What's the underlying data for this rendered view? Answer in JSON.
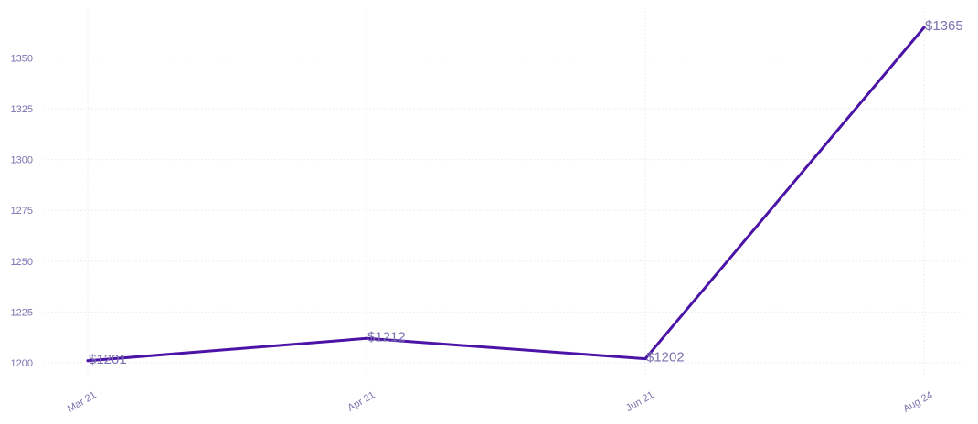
{
  "chart_data": {
    "type": "line",
    "categories": [
      "Mar 21",
      "Apr 21",
      "Jun 21",
      "Aug 24"
    ],
    "series": [
      {
        "values": [
          1201,
          1212,
          1202,
          1365
        ],
        "data_labels": [
          "$1201",
          "$1212",
          "$1202",
          "$1365"
        ]
      }
    ],
    "yticks": [
      1200,
      1225,
      1250,
      1275,
      1300,
      1325,
      1350
    ],
    "ylim": [
      1200,
      1365
    ],
    "grid": true,
    "line_color": "#4b13a6",
    "label_color": "#7b72b0"
  }
}
